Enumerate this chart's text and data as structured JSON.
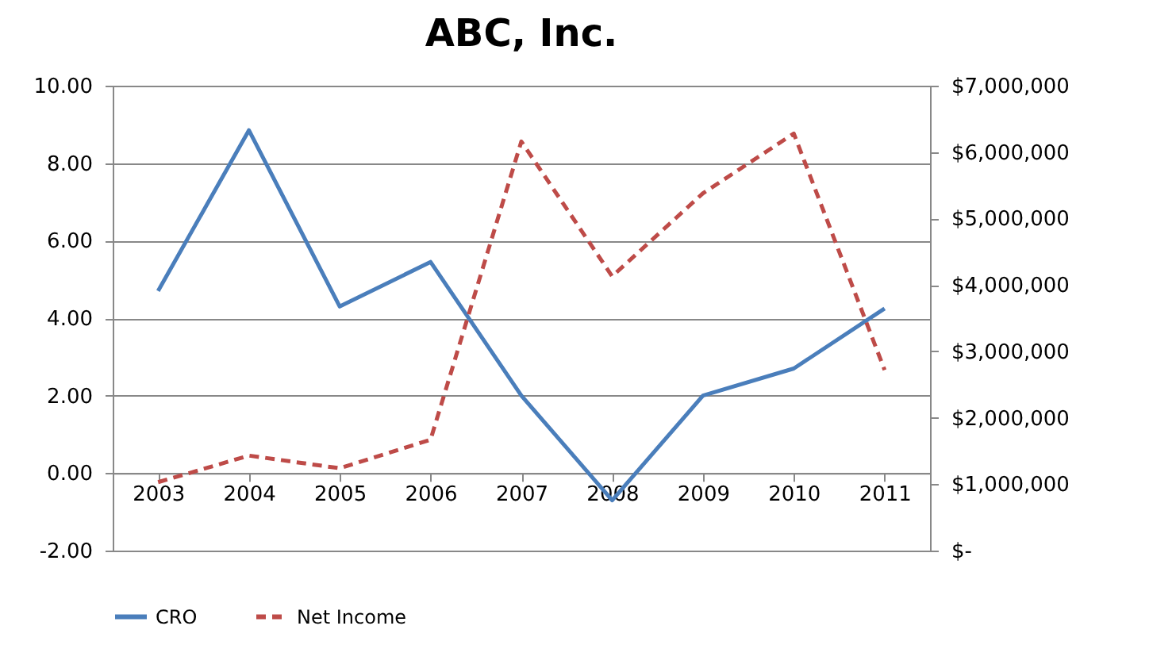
{
  "chart_data": {
    "type": "line",
    "title": "ABC, Inc.",
    "categories": [
      "2003",
      "2004",
      "2005",
      "2006",
      "2007",
      "2008",
      "2009",
      "2010",
      "2011"
    ],
    "series": [
      {
        "name": "CRO",
        "color": "#4a7ebb",
        "line_style": "solid",
        "values": [
          4.7,
          8.85,
          4.3,
          5.45,
          2.0,
          -0.7,
          2.0,
          2.7,
          4.25
        ]
      },
      {
        "name": "Net Income",
        "color": "#be4b48",
        "line_style": "dashed",
        "axis": "y2",
        "values": [
          1030000,
          1430000,
          1240000,
          1670000,
          6160000,
          4130000,
          5380000,
          6280000,
          2720000
        ]
      }
    ],
    "ylim": [
      -2,
      10
    ],
    "yticks": [
      {
        "value": -2,
        "label": "-2.00"
      },
      {
        "value": 0,
        "label": "0.00"
      },
      {
        "value": 2,
        "label": "2.00"
      },
      {
        "value": 4,
        "label": "4.00"
      },
      {
        "value": 6,
        "label": "6.00"
      },
      {
        "value": 8,
        "label": "8.00"
      },
      {
        "value": 10,
        "label": "10.00"
      }
    ],
    "y2lim": [
      0,
      7000000
    ],
    "y2ticks": [
      {
        "value": 0,
        "label": "$-"
      },
      {
        "value": 1000000,
        "label": "$1,000,000"
      },
      {
        "value": 2000000,
        "label": "$2,000,000"
      },
      {
        "value": 3000000,
        "label": "$3,000,000"
      },
      {
        "value": 4000000,
        "label": "$4,000,000"
      },
      {
        "value": 5000000,
        "label": "$5,000,000"
      },
      {
        "value": 6000000,
        "label": "$6,000,000"
      },
      {
        "value": 7000000,
        "label": "$7,000,000"
      }
    ],
    "grid": "y",
    "legend": "bottom"
  }
}
